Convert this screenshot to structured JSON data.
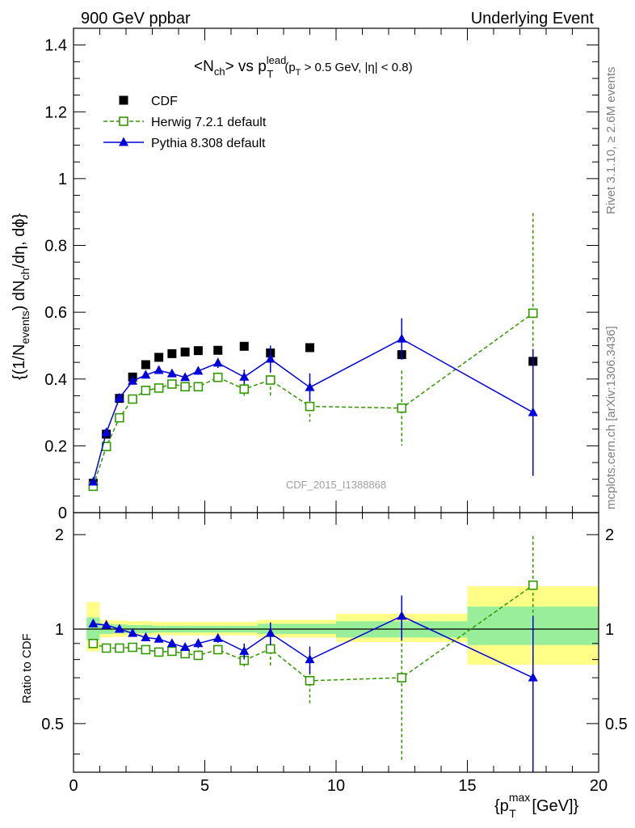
{
  "header": {
    "left": "900 GeV ppbar",
    "right": "Underlying Event"
  },
  "side_labels": {
    "top": "Rivet 3.1.10, ≥ 2.6M events",
    "bottom": "mcplots.cern.ch [arXiv:1306.3436]"
  },
  "watermark": "CDF_2015_I1388868",
  "colors": {
    "cdf": "#000000",
    "herwig": "#339900",
    "pythia": "#0000dd",
    "band_outer": "#ffff88",
    "band_inner": "#99ee99"
  },
  "chart_data": [
    {
      "type": "scatter",
      "panel": "main",
      "title": "<N_ch> vs p_T^lead (p_T > 0.5 GeV, |η| < 0.8)",
      "xlabel": "{p_T^max [GeV]}",
      "ylabel": "{(1/N_events) dN_ch/dη, dφ}",
      "xlim": [
        0,
        20
      ],
      "ylim": [
        0,
        1.45
      ],
      "yticks": [
        0,
        0.2,
        0.4,
        0.6,
        0.8,
        1,
        1.2,
        1.4
      ],
      "legend_position": "top-left",
      "series": [
        {
          "name": "CDF",
          "key": "cdf",
          "marker": "square",
          "x": [
            0.75,
            1.25,
            1.75,
            2.25,
            2.75,
            3.25,
            3.75,
            4.25,
            4.75,
            5.5,
            6.5,
            7.5,
            9.0,
            12.5,
            17.5
          ],
          "y": [
            0.088,
            0.235,
            0.342,
            0.406,
            0.443,
            0.465,
            0.476,
            0.481,
            0.485,
            0.486,
            0.498,
            0.478,
            0.494,
            0.473,
            0.453
          ],
          "err": [
            0,
            0,
            0,
            0,
            0,
            0,
            0,
            0,
            0,
            0,
            0,
            0,
            0,
            0,
            0
          ]
        },
        {
          "name": "Herwig 7.2.1 default",
          "key": "herwig",
          "marker": "open-square",
          "x": [
            0.75,
            1.25,
            1.75,
            2.25,
            2.75,
            3.25,
            3.75,
            4.25,
            4.75,
            5.5,
            6.5,
            7.5,
            9.0,
            12.5,
            17.5
          ],
          "y": [
            0.079,
            0.198,
            0.284,
            0.34,
            0.366,
            0.373,
            0.385,
            0.377,
            0.377,
            0.405,
            0.37,
            0.397,
            0.318,
            0.313,
            0.597
          ],
          "err": [
            0.005,
            0.006,
            0.006,
            0.007,
            0.008,
            0.008,
            0.009,
            0.01,
            0.011,
            0.014,
            0.02,
            0.048,
            0.046,
            0.112,
            0.3
          ]
        },
        {
          "name": "Pythia 8.308 default",
          "key": "pythia",
          "marker": "triangle",
          "x": [
            0.75,
            1.25,
            1.75,
            2.25,
            2.75,
            3.25,
            3.75,
            4.25,
            4.75,
            5.5,
            6.5,
            7.5,
            9.0,
            12.5,
            17.5
          ],
          "y": [
            0.092,
            0.24,
            0.343,
            0.394,
            0.412,
            0.426,
            0.416,
            0.405,
            0.424,
            0.448,
            0.406,
            0.46,
            0.375,
            0.52,
            0.3
          ],
          "err": [
            0.005,
            0.006,
            0.007,
            0.007,
            0.008,
            0.008,
            0.009,
            0.01,
            0.011,
            0.015,
            0.022,
            0.04,
            0.042,
            0.062,
            0.19
          ]
        }
      ]
    },
    {
      "type": "scatter",
      "panel": "ratio",
      "ylabel": "Ratio to CDF",
      "xlim": [
        0,
        20
      ],
      "ylim": [
        0.35,
        2.35
      ],
      "log_y": true,
      "yticks": [
        0.5,
        1,
        2
      ],
      "xticks": [
        0,
        5,
        10,
        15,
        20
      ],
      "xlabel": "{p_T^max [GeV]}",
      "bands": {
        "x_edges": [
          0.5,
          1.0,
          1.5,
          2.0,
          2.5,
          3.0,
          3.5,
          4.0,
          4.5,
          5.0,
          6.0,
          7.0,
          8.0,
          10.0,
          15.0,
          20.0
        ],
        "outer_lo": [
          0.85,
          0.94,
          0.945,
          0.95,
          0.95,
          0.955,
          0.955,
          0.955,
          0.955,
          0.955,
          0.955,
          0.94,
          0.94,
          0.91,
          0.77
        ],
        "outer_hi": [
          1.22,
          1.07,
          1.065,
          1.06,
          1.06,
          1.055,
          1.055,
          1.055,
          1.055,
          1.055,
          1.055,
          1.07,
          1.07,
          1.12,
          1.37
        ],
        "inner_lo": [
          0.92,
          0.965,
          0.97,
          0.97,
          0.97,
          0.975,
          0.975,
          0.975,
          0.975,
          0.975,
          0.975,
          0.965,
          0.965,
          0.94,
          0.89
        ],
        "inner_hi": [
          1.09,
          1.04,
          1.035,
          1.03,
          1.03,
          1.025,
          1.025,
          1.025,
          1.025,
          1.025,
          1.025,
          1.04,
          1.04,
          1.06,
          1.18
        ]
      },
      "series": [
        {
          "name": "Herwig 7.2.1 default",
          "key": "herwig",
          "marker": "open-square",
          "x": [
            0.75,
            1.25,
            1.75,
            2.25,
            2.75,
            3.25,
            3.75,
            4.25,
            4.75,
            5.5,
            6.5,
            7.5,
            9.0,
            12.5,
            17.5
          ],
          "y": [
            0.9,
            0.87,
            0.87,
            0.875,
            0.86,
            0.845,
            0.85,
            0.835,
            0.825,
            0.86,
            0.795,
            0.865,
            0.685,
            0.7,
            1.38
          ],
          "err": [
            0.02,
            0.02,
            0.02,
            0.02,
            0.02,
            0.02,
            0.02,
            0.02,
            0.03,
            0.03,
            0.05,
            0.1,
            0.11,
            0.32,
            0.6
          ]
        },
        {
          "name": "Pythia 8.308 default",
          "key": "pythia",
          "marker": "triangle",
          "x": [
            0.75,
            1.25,
            1.75,
            2.25,
            2.75,
            3.25,
            3.75,
            4.25,
            4.75,
            5.5,
            6.5,
            7.5,
            9.0,
            12.5,
            17.5
          ],
          "y": [
            1.04,
            1.03,
            1.0,
            0.97,
            0.94,
            0.93,
            0.9,
            0.875,
            0.9,
            0.935,
            0.85,
            0.97,
            0.8,
            1.1,
            0.7
          ],
          "err": [
            0.02,
            0.02,
            0.02,
            0.02,
            0.02,
            0.02,
            0.02,
            0.02,
            0.03,
            0.03,
            0.05,
            0.08,
            0.08,
            0.18,
            0.4
          ]
        }
      ]
    }
  ]
}
